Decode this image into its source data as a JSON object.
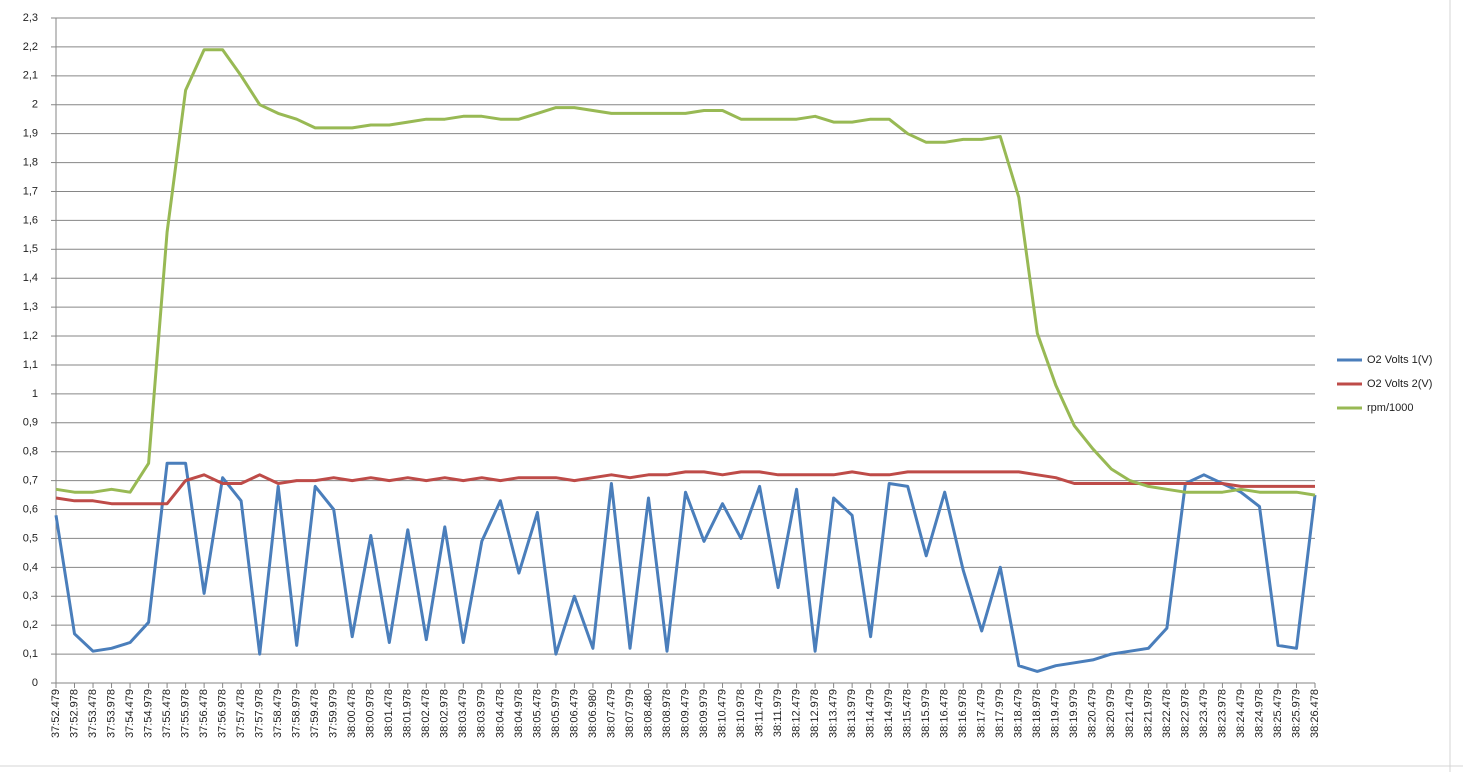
{
  "chart_data": {
    "type": "line",
    "categories": [
      "37:52.479",
      "37:52.978",
      "37:53.478",
      "37:53.978",
      "37:54.479",
      "37:54.979",
      "37:55.478",
      "37:55.978",
      "37:56.478",
      "37:56.978",
      "37:57.478",
      "37:57.978",
      "37:58.479",
      "37:58.979",
      "37:59.478",
      "37:59.979",
      "38:00.478",
      "38:00.978",
      "38:01.478",
      "38:01.978",
      "38:02.478",
      "38:02.978",
      "38:03.479",
      "38:03.979",
      "38:04.478",
      "38:04.978",
      "38:05.478",
      "38:05.979",
      "38:06.479",
      "38:06.980",
      "38:07.479",
      "38:07.979",
      "38:08.480",
      "38:08.978",
      "38:09.479",
      "38:09.979",
      "38:10.479",
      "38:10.978",
      "38:11.479",
      "38:11.979",
      "38:12.479",
      "38:12.978",
      "38:13.479",
      "38:13.979",
      "38:14.479",
      "38:14.979",
      "38:15.478",
      "38:15.979",
      "38:16.478",
      "38:16.978",
      "38:17.479",
      "38:17.979",
      "38:18.479",
      "38:18.978",
      "38:19.479",
      "38:19.979",
      "38:20.479",
      "38:20.979",
      "38:21.479",
      "38:21.978",
      "38:22.478",
      "38:22.978",
      "38:23.479",
      "38:23.978",
      "38:24.479",
      "38:24.978",
      "38:25.479",
      "38:25.979",
      "38:26.478"
    ],
    "series": [
      {
        "name": "O2 Volts 1(V)",
        "color": "#4a7ebb",
        "values": [
          0.58,
          0.17,
          0.11,
          0.12,
          0.14,
          0.21,
          0.76,
          0.76,
          0.31,
          0.71,
          0.63,
          0.1,
          0.68,
          0.13,
          0.68,
          0.6,
          0.16,
          0.51,
          0.14,
          0.53,
          0.15,
          0.54,
          0.14,
          0.49,
          0.63,
          0.38,
          0.59,
          0.1,
          0.3,
          0.12,
          0.69,
          0.12,
          0.64,
          0.11,
          0.66,
          0.49,
          0.62,
          0.5,
          0.68,
          0.33,
          0.67,
          0.11,
          0.64,
          0.58,
          0.16,
          0.69,
          0.68,
          0.44,
          0.66,
          0.39,
          0.18,
          0.4,
          0.06,
          0.04,
          0.06,
          0.07,
          0.08,
          0.1,
          0.11,
          0.12,
          0.19,
          0.69,
          0.72,
          0.69,
          0.66,
          0.61,
          0.13,
          0.12,
          0.65
        ]
      },
      {
        "name": "O2 Volts 2(V)",
        "color": "#be4b48",
        "values": [
          0.64,
          0.63,
          0.63,
          0.62,
          0.62,
          0.62,
          0.62,
          0.7,
          0.72,
          0.69,
          0.69,
          0.72,
          0.69,
          0.7,
          0.7,
          0.71,
          0.7,
          0.71,
          0.7,
          0.71,
          0.7,
          0.71,
          0.7,
          0.71,
          0.7,
          0.71,
          0.71,
          0.71,
          0.7,
          0.71,
          0.72,
          0.71,
          0.72,
          0.72,
          0.73,
          0.73,
          0.72,
          0.73,
          0.73,
          0.72,
          0.72,
          0.72,
          0.72,
          0.73,
          0.72,
          0.72,
          0.73,
          0.73,
          0.73,
          0.73,
          0.73,
          0.73,
          0.73,
          0.72,
          0.71,
          0.69,
          0.69,
          0.69,
          0.69,
          0.69,
          0.69,
          0.69,
          0.69,
          0.69,
          0.68,
          0.68,
          0.68,
          0.68,
          0.68
        ]
      },
      {
        "name": "rpm/1000",
        "color": "#98b954",
        "values": [
          0.67,
          0.66,
          0.66,
          0.67,
          0.66,
          0.76,
          1.56,
          2.05,
          2.19,
          2.19,
          2.1,
          2.0,
          1.97,
          1.95,
          1.92,
          1.92,
          1.92,
          1.93,
          1.93,
          1.94,
          1.95,
          1.95,
          1.96,
          1.96,
          1.95,
          1.95,
          1.97,
          1.99,
          1.99,
          1.98,
          1.97,
          1.97,
          1.97,
          1.97,
          1.97,
          1.98,
          1.98,
          1.95,
          1.95,
          1.95,
          1.95,
          1.96,
          1.94,
          1.94,
          1.95,
          1.95,
          1.9,
          1.87,
          1.87,
          1.88,
          1.88,
          1.89,
          1.68,
          1.21,
          1.03,
          0.89,
          0.81,
          0.74,
          0.7,
          0.68,
          0.67,
          0.66,
          0.66,
          0.66,
          0.67,
          0.66,
          0.66,
          0.66,
          0.65
        ]
      }
    ],
    "ylim": [
      0,
      2.3
    ],
    "yticks": [
      0,
      {
        "value": 0.1,
        "label": "0,1"
      },
      {
        "value": 0.2,
        "label": "0,2"
      },
      {
        "value": 0.3,
        "label": "0,3"
      },
      {
        "value": 0.4,
        "label": "0,4"
      },
      {
        "value": 0.5,
        "label": "0,5"
      },
      {
        "value": 0.6,
        "label": "0,6"
      },
      {
        "value": 0.7,
        "label": "0,7"
      },
      {
        "value": 0.8,
        "label": "0,8"
      },
      {
        "value": 0.9,
        "label": "0,9"
      },
      1,
      {
        "value": 1.1,
        "label": "1,1"
      },
      {
        "value": 1.2,
        "label": "1,2"
      },
      {
        "value": 1.3,
        "label": "1,3"
      },
      {
        "value": 1.4,
        "label": "1,4"
      },
      {
        "value": 1.5,
        "label": "1,5"
      },
      {
        "value": 1.6,
        "label": "1,6"
      },
      {
        "value": 1.7,
        "label": "1,7"
      },
      {
        "value": 1.8,
        "label": "1,8"
      },
      {
        "value": 1.9,
        "label": "1,9"
      },
      2,
      {
        "value": 2.1,
        "label": "2,1"
      },
      {
        "value": 2.2,
        "label": "2,2"
      },
      {
        "value": 2.3,
        "label": "2,3"
      }
    ],
    "grid": true,
    "legend": "right"
  }
}
